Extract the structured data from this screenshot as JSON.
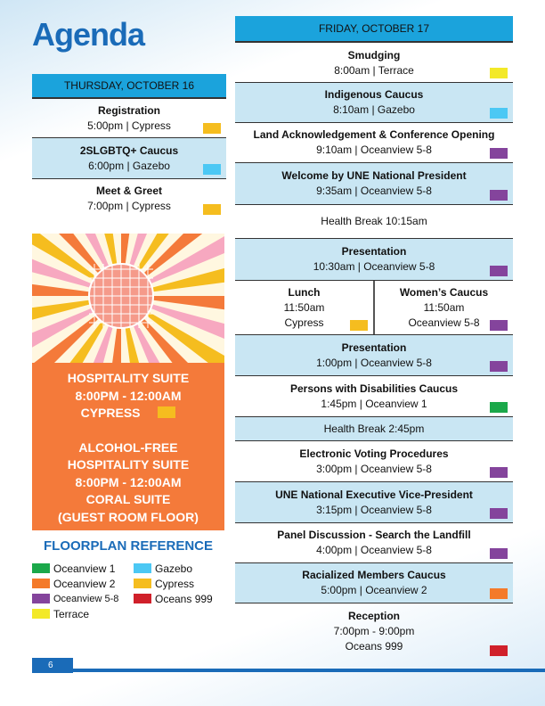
{
  "title": "Agenda",
  "thursday": {
    "header": "THURSDAY, OCTOBER 16",
    "rows": [
      {
        "title": "Registration",
        "detail": "5:00pm | Cypress",
        "color": "#f5bd1f"
      },
      {
        "title": "2SLGBTQ+ Caucus",
        "detail": "6:00pm | Gazebo",
        "color": "#4cc8f4"
      },
      {
        "title": "Meet & Greet",
        "detail": "7:00pm | Cypress",
        "color": "#f5bd1f"
      }
    ]
  },
  "hospitality": {
    "lines": [
      "HOSPITALITY SUITE",
      "8:00PM - 12:00AM",
      "CYPRESS"
    ],
    "cypress_color": "#f5bd1f",
    "alcohol_free": [
      "ALCOHOL-FREE",
      "HOSPITALITY SUITE",
      "8:00PM - 12:00AM",
      "CORAL SUITE",
      "(GUEST ROOM FLOOR)"
    ]
  },
  "floorplan": {
    "title": "FLOORPLAN REFERENCE",
    "items": [
      {
        "label": "Oceanview 1",
        "color": "#1ba84a"
      },
      {
        "label": "Oceanview 2",
        "color": "#f47a2a"
      },
      {
        "label": "Oceanview 5-8",
        "color": "#84449c"
      },
      {
        "label": "Terrace",
        "color": "#f3e928"
      },
      {
        "label": "Gazebo",
        "color": "#4cc8f4"
      },
      {
        "label": "Cypress",
        "color": "#f5bd1f"
      },
      {
        "label": "Oceans 999",
        "color": "#d0202a"
      }
    ]
  },
  "friday": {
    "header": "FRIDAY, OCTOBER 17",
    "rows": [
      {
        "title": "Smudging",
        "detail": "8:00am | Terrace",
        "color": "#f3e928"
      },
      {
        "title": "Indigenous Caucus",
        "detail": "8:10am | Gazebo",
        "color": "#4cc8f4"
      },
      {
        "title": "Land Acknowledgement &  Conference Opening",
        "detail": "9:10am | Oceanview 5-8",
        "color": "#84449c"
      },
      {
        "title": "Welcome by UNE National President",
        "detail": "9:35am | Oceanview 5-8",
        "color": "#84449c"
      },
      {
        "plain": "Health Break  10:15am"
      },
      {
        "title": "Presentation",
        "detail": "10:30am | Oceanview 5-8",
        "color": "#84449c"
      },
      {
        "split": [
          {
            "title": "Lunch",
            "time": "11:50am",
            "place": "Cypress",
            "color": "#f5bd1f"
          },
          {
            "title": "Women’s Caucus",
            "time": "11:50am",
            "place": "Oceanview 5-8",
            "color": "#84449c"
          }
        ]
      },
      {
        "title": "Presentation",
        "detail": "1:00pm | Oceanview 5-8",
        "color": "#84449c"
      },
      {
        "title": "Persons with Disabilities Caucus",
        "detail": "1:45pm | Oceanview 1",
        "color": "#1ba84a"
      },
      {
        "plain": "Health Break  2:45pm"
      },
      {
        "title": "Electronic Voting Procedures",
        "detail": "3:00pm | Oceanview 5-8",
        "color": "#84449c"
      },
      {
        "title": "UNE National Executive Vice-President",
        "detail": "3:15pm | Oceanview 5-8",
        "color": "#84449c"
      },
      {
        "title": "Panel Discussion - Search the Landfill",
        "detail": "4:00pm | Oceanview 5-8",
        "color": "#84449c"
      },
      {
        "title": "Racialized Members Caucus",
        "detail": "5:00pm | Oceanview 2",
        "color": "#f47a2a"
      },
      {
        "title": "Reception",
        "detail": "7:00pm - 9:00pm",
        "detail2": "Oceans 999",
        "color": "#d0202a"
      }
    ]
  },
  "page_number": "6"
}
